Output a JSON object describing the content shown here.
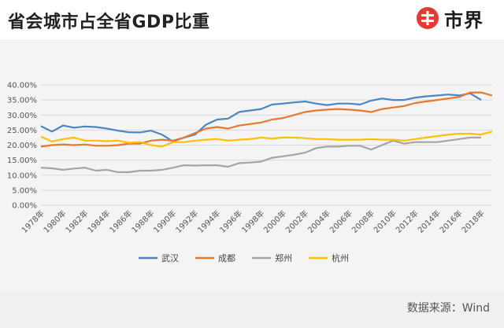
{
  "header": {
    "title": "省会城市占全省GDP比重",
    "brand_name": "市界",
    "brand_icon": "brand-logo-icon",
    "brand_color": "#e8382f"
  },
  "footer": {
    "source": "数据来源：Wind"
  },
  "chart_data": {
    "type": "line",
    "title": "",
    "xlabel": "",
    "ylabel": "",
    "ylim": [
      0,
      40
    ],
    "yticks": [
      "0.00%",
      "5.00%",
      "10.00%",
      "15.00%",
      "20.00%",
      "25.00%",
      "30.00%",
      "35.00%",
      "40.00%"
    ],
    "xtick_labels": [
      "1978年",
      "1980年",
      "1982年",
      "1984年",
      "1986年",
      "1988年",
      "1990年",
      "1992年",
      "1994年",
      "1996年",
      "1998年",
      "2000年",
      "2002年",
      "2004年",
      "2006年",
      "2008年",
      "2010年",
      "2012年",
      "2014年",
      "2016年",
      "2018年"
    ],
    "grid": true,
    "legend_position": "bottom",
    "x": [
      1978,
      1979,
      1980,
      1981,
      1982,
      1983,
      1984,
      1985,
      1986,
      1987,
      1988,
      1989,
      1990,
      1991,
      1992,
      1993,
      1994,
      1995,
      1996,
      1997,
      1998,
      1999,
      2000,
      2001,
      2002,
      2003,
      2004,
      2005,
      2006,
      2007,
      2008,
      2009,
      2010,
      2011,
      2012,
      2013,
      2014,
      2015,
      2016,
      2017,
      2018,
      2019
    ],
    "series": [
      {
        "name": "武汉",
        "color": "#4a86c5",
        "values": [
          26.3,
          24.5,
          26.5,
          25.8,
          26.2,
          26.0,
          25.5,
          24.8,
          24.3,
          24.2,
          24.8,
          23.5,
          21.2,
          22.5,
          23.5,
          26.8,
          28.5,
          28.8,
          31.0,
          31.5,
          32.0,
          33.5,
          33.8,
          34.2,
          34.5,
          33.8,
          33.3,
          33.8,
          33.8,
          33.5,
          34.8,
          35.5,
          35.0,
          35.0,
          35.8,
          36.2,
          36.5,
          36.8,
          36.5,
          37.2,
          35.0,
          null
        ]
      },
      {
        "name": "成都",
        "color": "#e8782e",
        "values": [
          19.5,
          20.0,
          20.2,
          20.0,
          20.2,
          19.8,
          19.8,
          20.0,
          20.5,
          20.5,
          21.5,
          21.8,
          21.5,
          22.5,
          24.0,
          25.5,
          26.0,
          25.5,
          26.5,
          27.0,
          27.5,
          28.5,
          29.0,
          30.0,
          31.0,
          31.5,
          31.8,
          32.0,
          31.8,
          31.5,
          31.0,
          32.0,
          32.5,
          33.0,
          34.0,
          34.5,
          35.0,
          35.5,
          36.0,
          37.5,
          37.5,
          36.5
        ]
      },
      {
        "name": "郑州",
        "color": "#a5a5a5",
        "values": [
          12.5,
          12.3,
          11.8,
          12.2,
          12.5,
          11.5,
          11.8,
          11.0,
          11.0,
          11.5,
          11.5,
          11.8,
          12.5,
          13.3,
          13.2,
          13.3,
          13.3,
          12.8,
          14.0,
          14.2,
          14.5,
          15.8,
          16.3,
          16.8,
          17.5,
          19.0,
          19.5,
          19.5,
          19.8,
          19.8,
          18.5,
          20.0,
          21.5,
          20.5,
          21.0,
          21.0,
          21.0,
          21.5,
          22.0,
          22.5,
          22.5,
          null
        ]
      },
      {
        "name": "杭州",
        "color": "#ffc000",
        "values": [
          22.8,
          21.2,
          22.0,
          22.5,
          21.5,
          21.5,
          21.3,
          21.5,
          20.8,
          21.0,
          20.0,
          19.5,
          21.0,
          21.0,
          21.5,
          21.8,
          22.0,
          21.5,
          21.8,
          22.0,
          22.5,
          22.2,
          22.5,
          22.5,
          22.3,
          22.0,
          22.0,
          21.8,
          21.8,
          21.8,
          22.0,
          21.8,
          21.8,
          21.5,
          22.0,
          22.5,
          23.0,
          23.5,
          23.8,
          23.8,
          23.5,
          24.5
        ]
      }
    ]
  }
}
